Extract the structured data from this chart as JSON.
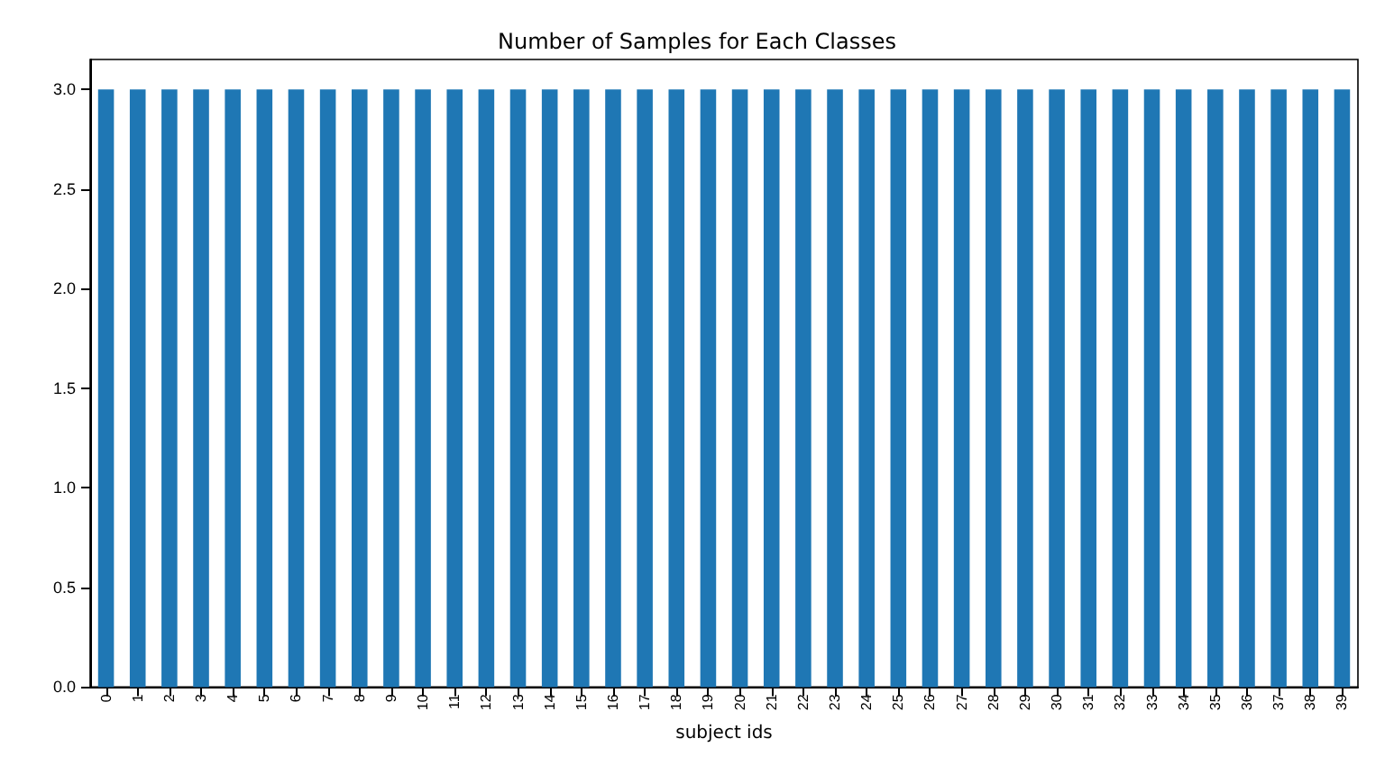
{
  "chart_data": {
    "type": "bar",
    "title": "Number of Samples for Each Classes",
    "xlabel": "subject ids",
    "categories": [
      "0",
      "1",
      "2",
      "3",
      "4",
      "5",
      "6",
      "7",
      "8",
      "9",
      "10",
      "11",
      "12",
      "13",
      "14",
      "15",
      "16",
      "17",
      "18",
      "19",
      "20",
      "21",
      "22",
      "23",
      "24",
      "25",
      "26",
      "27",
      "28",
      "29",
      "30",
      "31",
      "32",
      "33",
      "34",
      "35",
      "36",
      "37",
      "38",
      "39"
    ],
    "values": [
      3,
      3,
      3,
      3,
      3,
      3,
      3,
      3,
      3,
      3,
      3,
      3,
      3,
      3,
      3,
      3,
      3,
      3,
      3,
      3,
      3,
      3,
      3,
      3,
      3,
      3,
      3,
      3,
      3,
      3,
      3,
      3,
      3,
      3,
      3,
      3,
      3,
      3,
      3,
      3
    ],
    "color": "#1f77b4",
    "ylim": [
      0,
      3.15
    ],
    "yticks": [
      {
        "value": 0,
        "label": "0.0"
      },
      {
        "value": 0.5,
        "label": "0.5"
      },
      {
        "value": 1,
        "label": "1.0"
      },
      {
        "value": 1.5,
        "label": "1.5"
      },
      {
        "value": 2,
        "label": "2.0"
      },
      {
        "value": 2.5,
        "label": "2.5"
      },
      {
        "value": 3,
        "label": "3.0"
      }
    ],
    "grid": false
  }
}
